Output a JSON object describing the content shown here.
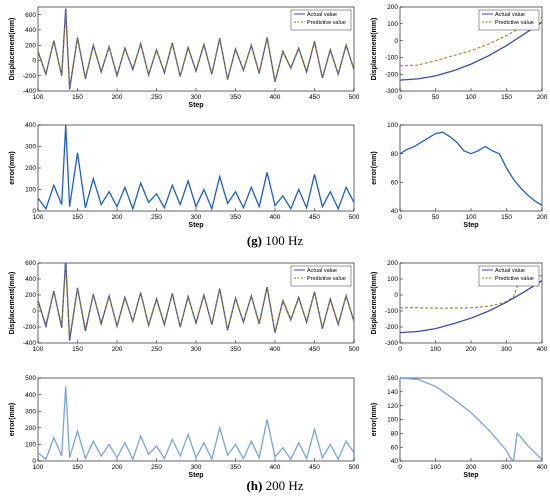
{
  "captions": [
    {
      "tag": "(g)",
      "text": " 100 Hz"
    },
    {
      "tag": "(h)",
      "text": " 200 Hz"
    }
  ],
  "colors": {
    "actual": "#3a4ea8",
    "predictive": "#9a7a1a",
    "error_g": "#1f5fc0",
    "error_h": "#7aa4dc",
    "axis": "#000000"
  },
  "chart_data": [
    {
      "panel": "g-left-top",
      "type": "line",
      "xlabel": "Step",
      "ylabel": "Displacement(mm)",
      "xlim": [
        100,
        500
      ],
      "ylim": [
        -400,
        700
      ],
      "xticks": [
        100,
        150,
        200,
        250,
        300,
        350,
        400,
        450,
        500
      ],
      "yticks": [
        -400,
        -200,
        0,
        200,
        400,
        600
      ],
      "legend": "top-right",
      "series": [
        {
          "name": "Actual value",
          "style": "solid",
          "color": "#3a4ea8",
          "x": [
            100,
            110,
            120,
            130,
            135,
            140,
            150,
            160,
            170,
            180,
            190,
            200,
            210,
            220,
            230,
            240,
            250,
            260,
            270,
            280,
            290,
            300,
            310,
            320,
            330,
            340,
            350,
            360,
            370,
            380,
            390,
            400,
            410,
            420,
            430,
            440,
            450,
            460,
            470,
            480,
            490,
            500
          ],
          "values": [
            120,
            -180,
            260,
            -200,
            680,
            -380,
            300,
            -240,
            200,
            -150,
            180,
            -200,
            160,
            -120,
            220,
            -190,
            140,
            -160,
            230,
            -210,
            170,
            -140,
            210,
            -180,
            290,
            -250,
            150,
            -130,
            200,
            -170,
            300,
            -280,
            120,
            -100,
            160,
            -150,
            250,
            -230,
            140,
            -180,
            200,
            -120
          ]
        },
        {
          "name": "Predictive value",
          "style": "dashed",
          "color": "#9a7a1a",
          "x": [
            100,
            110,
            120,
            130,
            135,
            140,
            150,
            160,
            170,
            180,
            190,
            200,
            210,
            220,
            230,
            240,
            250,
            260,
            270,
            280,
            290,
            300,
            310,
            320,
            330,
            340,
            350,
            360,
            370,
            380,
            390,
            400,
            410,
            420,
            430,
            440,
            450,
            460,
            470,
            480,
            490,
            500
          ],
          "values": [
            110,
            -170,
            250,
            -190,
            600,
            -350,
            290,
            -230,
            190,
            -140,
            170,
            -190,
            150,
            -110,
            210,
            -180,
            130,
            -150,
            220,
            -200,
            160,
            -130,
            200,
            -170,
            280,
            -240,
            140,
            -120,
            190,
            -160,
            290,
            -270,
            110,
            -90,
            150,
            -140,
            240,
            -220,
            130,
            -170,
            190,
            -110
          ]
        }
      ]
    },
    {
      "panel": "g-right-top",
      "type": "line",
      "xlabel": "",
      "ylabel": "Displacement(mm)",
      "xlim": [
        0,
        200
      ],
      "ylim": [
        -300,
        200
      ],
      "xticks": [
        0,
        50,
        100,
        150,
        200
      ],
      "yticks": [
        -300,
        -200,
        -100,
        0,
        100,
        200
      ],
      "legend": "top-right",
      "series": [
        {
          "name": "Actual value",
          "style": "solid",
          "color": "#3a4ea8",
          "x": [
            0,
            25,
            50,
            75,
            100,
            125,
            150,
            175,
            200
          ],
          "values": [
            -235,
            -228,
            -210,
            -180,
            -140,
            -90,
            -30,
            40,
            110
          ]
        },
        {
          "name": "Predictive value",
          "style": "dashed",
          "color": "#9a7a1a",
          "x": [
            0,
            25,
            50,
            75,
            100,
            125,
            150,
            175,
            200
          ],
          "values": [
            -150,
            -145,
            -120,
            -90,
            -60,
            -20,
            30,
            90,
            140
          ]
        }
      ]
    },
    {
      "panel": "g-left-bottom",
      "type": "line",
      "xlabel": "Step",
      "ylabel": "error(mm)",
      "xlim": [
        100,
        500
      ],
      "ylim": [
        0,
        400
      ],
      "xticks": [
        100,
        150,
        200,
        250,
        300,
        350,
        400,
        450,
        500
      ],
      "yticks": [
        0,
        100,
        200,
        300,
        400
      ],
      "series": [
        {
          "style": "solid",
          "color": "#1f5fc0",
          "x": [
            100,
            110,
            120,
            130,
            135,
            140,
            150,
            160,
            170,
            180,
            190,
            200,
            210,
            220,
            230,
            240,
            250,
            260,
            270,
            280,
            290,
            300,
            310,
            320,
            330,
            340,
            350,
            360,
            370,
            380,
            390,
            400,
            410,
            420,
            430,
            440,
            450,
            460,
            470,
            480,
            490,
            500
          ],
          "values": [
            60,
            10,
            120,
            30,
            400,
            20,
            270,
            15,
            150,
            30,
            90,
            20,
            110,
            10,
            130,
            40,
            80,
            15,
            120,
            30,
            140,
            20,
            100,
            10,
            160,
            35,
            90,
            15,
            110,
            20,
            180,
            25,
            70,
            10,
            100,
            15,
            170,
            20,
            90,
            10,
            110,
            40
          ]
        }
      ]
    },
    {
      "panel": "g-right-bottom",
      "type": "line",
      "xlabel": "Step",
      "ylabel": "error(mm)",
      "xlim": [
        0,
        200
      ],
      "ylim": [
        40,
        100
      ],
      "xticks": [
        0,
        50,
        100,
        150,
        200
      ],
      "yticks": [
        40,
        60,
        80,
        100
      ],
      "series": [
        {
          "style": "solid",
          "color": "#1f5fc0",
          "x": [
            0,
            10,
            20,
            30,
            40,
            50,
            60,
            70,
            80,
            90,
            100,
            110,
            120,
            130,
            140,
            150,
            160,
            170,
            180,
            190,
            200
          ],
          "values": [
            80,
            83,
            85,
            88,
            91,
            94,
            95,
            92,
            88,
            82,
            80,
            82,
            85,
            82,
            80,
            70,
            62,
            56,
            51,
            47,
            44
          ]
        }
      ]
    },
    {
      "panel": "h-left-top",
      "type": "line",
      "xlabel": "",
      "ylabel": "Displacement(mm)",
      "xlim": [
        100,
        500
      ],
      "ylim": [
        -400,
        600
      ],
      "xticks": [
        100,
        150,
        200,
        250,
        300,
        350,
        400,
        450,
        500
      ],
      "yticks": [
        -400,
        -200,
        0,
        200,
        400,
        600
      ],
      "legend": "top-right",
      "series": [
        {
          "name": "Actual value",
          "style": "solid",
          "color": "#3a4ea8",
          "x": [
            100,
            110,
            120,
            130,
            135,
            140,
            150,
            160,
            170,
            180,
            190,
            200,
            210,
            220,
            230,
            240,
            250,
            260,
            270,
            280,
            290,
            300,
            310,
            320,
            330,
            340,
            350,
            360,
            370,
            380,
            390,
            400,
            410,
            420,
            430,
            440,
            450,
            460,
            470,
            480,
            490,
            500
          ],
          "values": [
            130,
            -190,
            250,
            -210,
            650,
            -370,
            290,
            -250,
            210,
            -160,
            190,
            -190,
            170,
            -130,
            230,
            -180,
            150,
            -170,
            220,
            -200,
            180,
            -150,
            200,
            -170,
            280,
            -240,
            160,
            -140,
            190,
            -160,
            300,
            -270,
            130,
            -110,
            170,
            -140,
            240,
            -220,
            150,
            -170,
            190,
            -130
          ]
        },
        {
          "name": "Predictive value",
          "style": "dashed",
          "color": "#9a7a1a",
          "x": [
            100,
            110,
            120,
            130,
            135,
            140,
            150,
            160,
            170,
            180,
            190,
            200,
            210,
            220,
            230,
            240,
            250,
            260,
            270,
            280,
            290,
            300,
            310,
            320,
            330,
            340,
            350,
            360,
            370,
            380,
            390,
            400,
            410,
            420,
            430,
            440,
            450,
            460,
            470,
            480,
            490,
            500
          ],
          "values": [
            100,
            -160,
            240,
            -180,
            560,
            -330,
            280,
            -220,
            200,
            -140,
            180,
            -180,
            160,
            -120,
            220,
            -170,
            140,
            -160,
            210,
            -190,
            170,
            -140,
            190,
            -160,
            270,
            -230,
            150,
            -130,
            180,
            -150,
            290,
            -260,
            120,
            -100,
            160,
            -130,
            230,
            -210,
            140,
            -160,
            180,
            -120
          ]
        }
      ]
    },
    {
      "panel": "h-right-top",
      "type": "line",
      "xlabel": "",
      "ylabel": "Displacement(mm)",
      "xlim": [
        0,
        400
      ],
      "ylim": [
        -300,
        200
      ],
      "xticks": [
        0,
        100,
        200,
        300,
        400
      ],
      "yticks": [
        -300,
        -200,
        -100,
        0,
        100,
        200
      ],
      "legend": "top-right",
      "series": [
        {
          "name": "Actual value",
          "style": "solid",
          "color": "#3a4ea8",
          "x": [
            0,
            50,
            100,
            150,
            200,
            250,
            300,
            350,
            400
          ],
          "values": [
            -235,
            -228,
            -210,
            -180,
            -145,
            -100,
            -45,
            20,
            90
          ]
        },
        {
          "name": "Predictive value",
          "style": "dashed",
          "color": "#9a7a1a",
          "x": [
            0,
            50,
            100,
            150,
            200,
            250,
            280,
            300,
            320,
            330,
            340,
            360,
            380,
            400
          ],
          "values": [
            -80,
            -80,
            -82,
            -82,
            -80,
            -70,
            -55,
            -40,
            -10,
            50,
            110,
            115,
            118,
            120
          ]
        }
      ]
    },
    {
      "panel": "h-left-bottom",
      "type": "line",
      "xlabel": "Step",
      "ylabel": "error(mm)",
      "xlim": [
        100,
        500
      ],
      "ylim": [
        0,
        500
      ],
      "xticks": [
        100,
        150,
        200,
        250,
        300,
        350,
        400,
        450,
        500
      ],
      "yticks": [
        0,
        100,
        200,
        300,
        400,
        500
      ],
      "series": [
        {
          "style": "solid",
          "color": "#7aa4dc",
          "x": [
            100,
            110,
            120,
            130,
            135,
            140,
            150,
            160,
            170,
            180,
            190,
            200,
            210,
            220,
            230,
            240,
            250,
            260,
            270,
            280,
            290,
            300,
            310,
            320,
            330,
            340,
            350,
            360,
            370,
            380,
            390,
            400,
            410,
            420,
            430,
            440,
            450,
            460,
            470,
            480,
            490,
            500
          ],
          "values": [
            50,
            10,
            140,
            30,
            450,
            20,
            180,
            15,
            120,
            30,
            100,
            20,
            110,
            10,
            150,
            40,
            90,
            15,
            130,
            30,
            160,
            20,
            110,
            10,
            200,
            35,
            100,
            15,
            120,
            20,
            250,
            25,
            80,
            10,
            110,
            15,
            190,
            20,
            100,
            10,
            120,
            50
          ]
        }
      ]
    },
    {
      "panel": "h-right-bottom",
      "type": "line",
      "xlabel": "Step",
      "ylabel": "error(mm)",
      "xlim": [
        0,
        400
      ],
      "ylim": [
        40,
        160
      ],
      "xticks": [
        0,
        100,
        200,
        300,
        400
      ],
      "yticks": [
        40,
        60,
        80,
        100,
        120,
        140,
        160
      ],
      "series": [
        {
          "style": "solid",
          "color": "#7aa4dc",
          "x": [
            0,
            50,
            100,
            150,
            200,
            250,
            300,
            310,
            320,
            330,
            340,
            360,
            380,
            400
          ],
          "values": [
            160,
            158,
            148,
            130,
            110,
            85,
            55,
            45,
            40,
            80,
            75,
            62,
            52,
            42
          ]
        }
      ]
    }
  ]
}
